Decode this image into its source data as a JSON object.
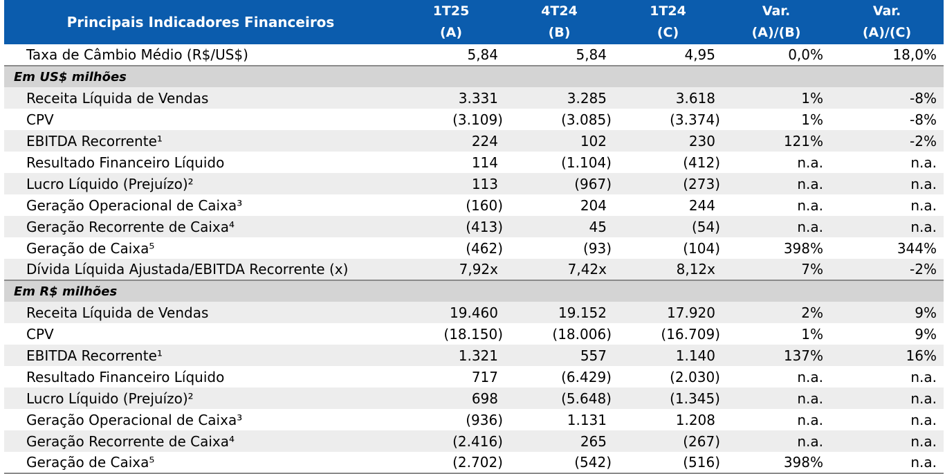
{
  "header": {
    "title": "Principais Indicadores Financeiros",
    "columns": [
      {
        "line1": "1T25",
        "line2": "(A)"
      },
      {
        "line1": "4T24",
        "line2": "(B)"
      },
      {
        "line1": "1T24",
        "line2": "(C)"
      },
      {
        "line1": "Var.",
        "line2": "(A)/(B)"
      },
      {
        "line1": "Var.",
        "line2": "(A)/(C)"
      }
    ]
  },
  "fx_row": {
    "label": "Taxa de Câmbio Médio (R$/US$)",
    "values": [
      "5,84",
      "5,84",
      "4,95",
      "0,0%",
      "18,0%"
    ]
  },
  "sections": [
    {
      "title": "Em US$ milhões",
      "rows": [
        {
          "label": "Receita Líquida de Vendas",
          "values": [
            "3.331",
            "3.285",
            "3.618",
            "1%",
            "-8%"
          ]
        },
        {
          "label": "CPV",
          "values": [
            "(3.109)",
            "(3.085)",
            "(3.374)",
            "1%",
            "-8%"
          ]
        },
        {
          "label": "EBITDA Recorrente¹",
          "values": [
            "224",
            "102",
            "230",
            "121%",
            "-2%"
          ]
        },
        {
          "label": "Resultado Financeiro Líquido",
          "values": [
            "114",
            "(1.104)",
            "(412)",
            "n.a.",
            "n.a."
          ]
        },
        {
          "label": "Lucro Líquido (Prejuízo)²",
          "values": [
            "113",
            "(967)",
            "(273)",
            "n.a.",
            "n.a."
          ]
        },
        {
          "label": "Geração Operacional de Caixa³",
          "values": [
            "(160)",
            "204",
            "244",
            "n.a.",
            "n.a."
          ]
        },
        {
          "label": "Geração Recorrente de Caixa⁴",
          "values": [
            "(413)",
            "45",
            "(54)",
            "n.a.",
            "n.a."
          ]
        },
        {
          "label": "Geração de Caixa⁵",
          "values": [
            "(462)",
            "(93)",
            "(104)",
            "398%",
            "344%"
          ]
        },
        {
          "label": "Dívida Líquida Ajustada/EBITDA Recorrente (x)",
          "values": [
            "7,92x",
            "7,42x",
            "8,12x",
            "7%",
            "-2%"
          ]
        }
      ]
    },
    {
      "title": "Em R$ milhões",
      "rows": [
        {
          "label": "Receita Líquida de Vendas",
          "values": [
            "19.460",
            "19.152",
            "17.920",
            "2%",
            "9%"
          ]
        },
        {
          "label": "CPV",
          "values": [
            "(18.150)",
            "(18.006)",
            "(16.709)",
            "1%",
            "9%"
          ]
        },
        {
          "label": "EBITDA Recorrente¹",
          "values": [
            "1.321",
            "557",
            "1.140",
            "137%",
            "16%"
          ]
        },
        {
          "label": "Resultado Financeiro Líquido",
          "values": [
            "717",
            "(6.429)",
            "(2.030)",
            "n.a.",
            "n.a."
          ]
        },
        {
          "label": "Lucro Líquido (Prejuízo)²",
          "values": [
            "698",
            "(5.648)",
            "(1.345)",
            "n.a.",
            "n.a."
          ]
        },
        {
          "label": "Geração Operacional de Caixa³",
          "values": [
            "(936)",
            "1.131",
            "1.208",
            "n.a.",
            "n.a."
          ]
        },
        {
          "label": "Geração Recorrente de Caixa⁴",
          "values": [
            "(2.416)",
            "265",
            "(267)",
            "n.a.",
            "n.a."
          ]
        },
        {
          "label": "Geração de Caixa⁵",
          "values": [
            "(2.702)",
            "(542)",
            "(516)",
            "398%",
            "n.a."
          ]
        }
      ]
    }
  ],
  "colors": {
    "header_bg": "#0b5cad",
    "section_bg": "#d4d4d4",
    "stripe_bg": "#ededed"
  }
}
